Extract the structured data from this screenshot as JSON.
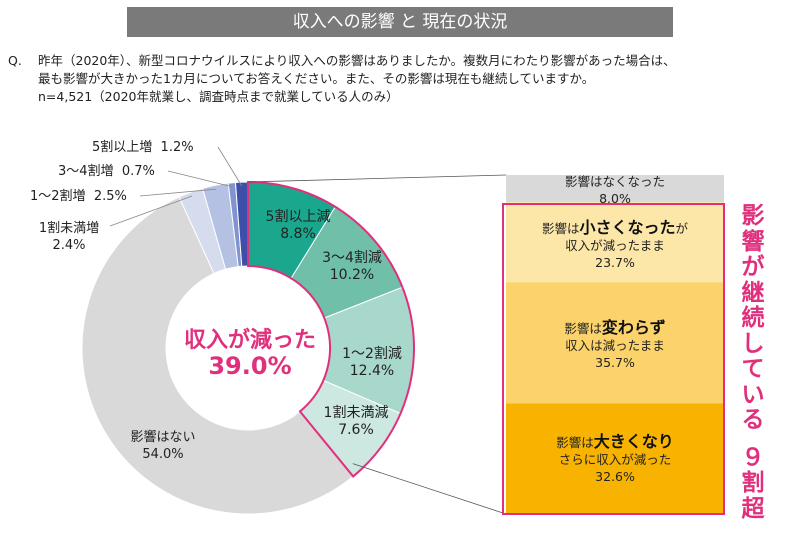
{
  "title": "収入への影響 と 現在の状況",
  "question": {
    "prefix": "Q.",
    "lines": [
      "昨年（2020年）、新型コロナウイルスにより収入への影響はありましたか。複数月にわたり影響があった場合は、",
      "最も影響が大きかった1カ月についてお答えください。また、その影響は現在も継続していますか。",
      "n=4,521（2020年就業し、調査時点まで就業している人のみ）"
    ]
  },
  "center_label": {
    "line1": "収入が減った",
    "line2": "39.0%"
  },
  "vertical_text": [
    "影",
    "響",
    "が",
    "継",
    "続",
    "し",
    "て",
    "い",
    "る",
    "",
    "９",
    "割",
    "超"
  ],
  "colors": {
    "accent": "#e0307d"
  },
  "chart_data": [
    {
      "type": "pie",
      "style": "donut",
      "slices": [
        {
          "label": "5割以上減",
          "value": 8.8,
          "color": "#1aa78d"
        },
        {
          "label": "3～4割減",
          "value": 10.2,
          "color": "#6fbfa9"
        },
        {
          "label": "1～2割減",
          "value": 12.4,
          "color": "#a8d7cb"
        },
        {
          "label": "1割未満減",
          "value": 7.6,
          "color": "#cce8e1"
        },
        {
          "label": "影響はない",
          "value": 54.0,
          "color": "#d9d9d9"
        },
        {
          "label": "1割未満増",
          "value": 2.4,
          "color": "#d5dcee"
        },
        {
          "label": "1～2割増",
          "value": 2.5,
          "color": "#b4c1e3"
        },
        {
          "label": "3～4割増",
          "value": 0.7,
          "color": "#8194cf"
        },
        {
          "label": "5割以上増",
          "value": 1.2,
          "color": "#3d4fa8"
        }
      ],
      "value_labels": [
        "8.8%",
        "10.2%",
        "12.4%",
        "7.6%",
        "54.0%",
        "2.4%",
        "2.5%",
        "0.7%",
        "1.2%"
      ]
    },
    {
      "type": "bar",
      "style": "100% stacked",
      "segments": [
        {
          "text_plain1": "影響は",
          "text_bold": "",
          "text_plain2": "なくなった",
          "value": 8.0,
          "label": "8.0%",
          "color": "#d9d9d9"
        },
        {
          "text_plain1": "影響は",
          "text_bold": "小さくなった",
          "text_plain2": "が",
          "sub": "収入が減ったまま",
          "value": 23.7,
          "label": "23.7%",
          "color": "#fde7a8"
        },
        {
          "text_plain1": "影響は",
          "text_bold": "変わらず",
          "text_plain2": "",
          "sub": "収入は減ったまま",
          "value": 35.7,
          "label": "35.7%",
          "color": "#fbd36a"
        },
        {
          "text_plain1": "影響は",
          "text_bold": "大きくなり",
          "text_plain2": "",
          "sub": "さらに収入が減った",
          "value": 32.6,
          "label": "32.6%",
          "color": "#f7b300"
        }
      ]
    }
  ]
}
